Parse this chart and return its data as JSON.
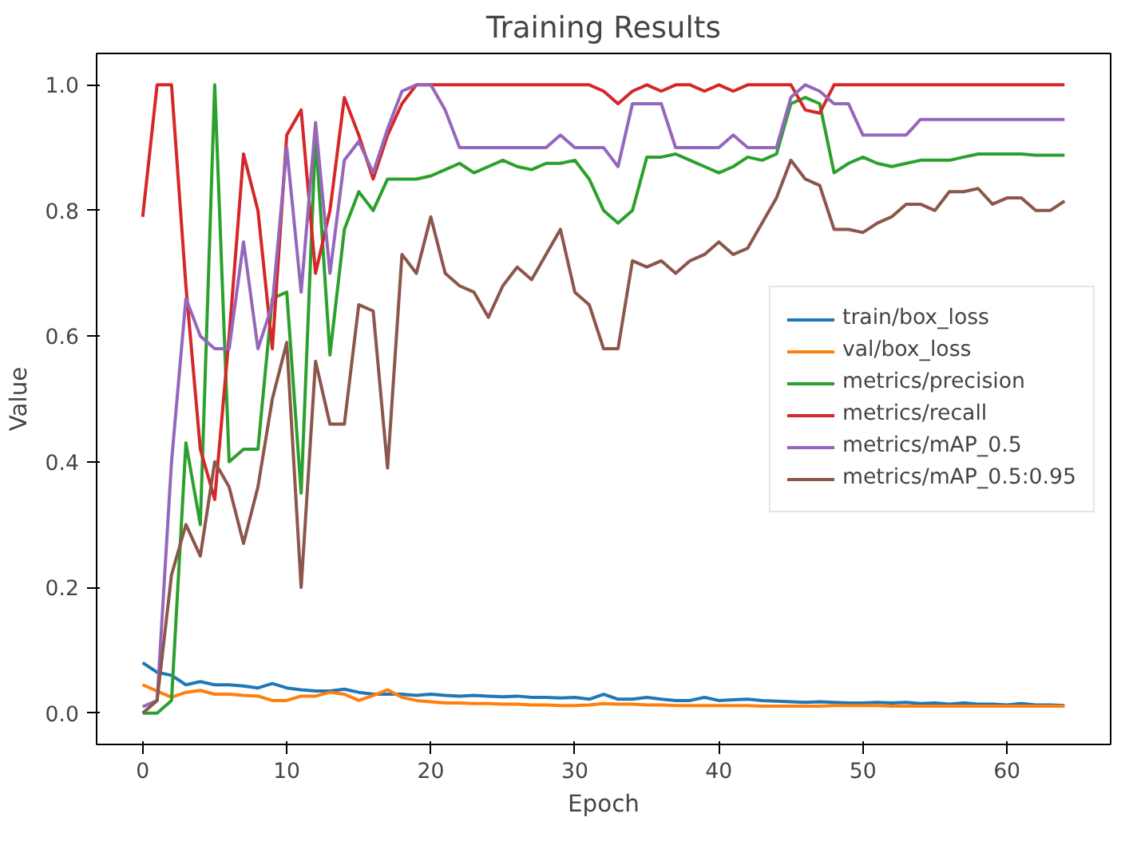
{
  "chart_data": {
    "type": "line",
    "title": "Training Results",
    "xlabel": "Epoch",
    "ylabel": "Value",
    "x": [
      0,
      1,
      2,
      3,
      4,
      5,
      6,
      7,
      8,
      9,
      10,
      11,
      12,
      13,
      14,
      15,
      16,
      17,
      18,
      19,
      20,
      21,
      22,
      23,
      24,
      25,
      26,
      27,
      28,
      29,
      30,
      31,
      32,
      33,
      34,
      35,
      36,
      37,
      38,
      39,
      40,
      41,
      42,
      43,
      44,
      45,
      46,
      47,
      48,
      49,
      50,
      51,
      52,
      53,
      54,
      55,
      56,
      57,
      58,
      59,
      60,
      61,
      62,
      63,
      64
    ],
    "xlim": [
      -3.2,
      67.2
    ],
    "ylim": [
      -0.05,
      1.05
    ],
    "xticks": [
      0,
      10,
      20,
      30,
      40,
      50,
      60
    ],
    "yticks": [
      {
        "value": 0,
        "label": "0.0"
      },
      {
        "value": 0.2,
        "label": "0.2"
      },
      {
        "value": 0.4,
        "label": "0.4"
      },
      {
        "value": 0.6,
        "label": "0.6"
      },
      {
        "value": 0.8,
        "label": "0.8"
      },
      {
        "value": 1,
        "label": "1.0"
      }
    ],
    "grid": false,
    "legend": "right",
    "line_style": "solid",
    "marker": "none",
    "series": [
      {
        "name": "train/box_loss",
        "color": "#1f77b4",
        "values": [
          0.08,
          0.065,
          0.06,
          0.045,
          0.05,
          0.045,
          0.045,
          0.043,
          0.04,
          0.047,
          0.04,
          0.037,
          0.035,
          0.035,
          0.038,
          0.033,
          0.03,
          0.03,
          0.03,
          0.028,
          0.03,
          0.028,
          0.027,
          0.028,
          0.027,
          0.026,
          0.027,
          0.025,
          0.025,
          0.024,
          0.025,
          0.022,
          0.03,
          0.022,
          0.022,
          0.025,
          0.022,
          0.02,
          0.02,
          0.025,
          0.02,
          0.021,
          0.022,
          0.02,
          0.019,
          0.018,
          0.017,
          0.018,
          0.017,
          0.016,
          0.016,
          0.017,
          0.016,
          0.017,
          0.015,
          0.016,
          0.014,
          0.016,
          0.014,
          0.014,
          0.013,
          0.015,
          0.013,
          0.013,
          0.012
        ]
      },
      {
        "name": "val/box_loss",
        "color": "#ff7f0e",
        "values": [
          0.045,
          0.035,
          0.025,
          0.033,
          0.036,
          0.03,
          0.03,
          0.028,
          0.027,
          0.02,
          0.02,
          0.027,
          0.027,
          0.033,
          0.03,
          0.02,
          0.028,
          0.037,
          0.025,
          0.02,
          0.018,
          0.016,
          0.016,
          0.015,
          0.015,
          0.014,
          0.014,
          0.013,
          0.013,
          0.012,
          0.012,
          0.013,
          0.015,
          0.014,
          0.014,
          0.013,
          0.013,
          0.012,
          0.012,
          0.012,
          0.012,
          0.012,
          0.012,
          0.011,
          0.011,
          0.011,
          0.011,
          0.011,
          0.012,
          0.012,
          0.012,
          0.012,
          0.011,
          0.011,
          0.011,
          0.011,
          0.011,
          0.011,
          0.011,
          0.011,
          0.011,
          0.011,
          0.011,
          0.011,
          0.011
        ]
      },
      {
        "name": "metrics/precision",
        "color": "#2ca02c",
        "values": [
          0.0,
          0.0,
          0.02,
          0.43,
          0.3,
          1.0,
          0.4,
          0.42,
          0.42,
          0.66,
          0.67,
          0.35,
          0.92,
          0.57,
          0.77,
          0.83,
          0.8,
          0.85,
          0.85,
          0.85,
          0.855,
          0.865,
          0.875,
          0.86,
          0.87,
          0.88,
          0.87,
          0.865,
          0.875,
          0.875,
          0.88,
          0.85,
          0.8,
          0.78,
          0.8,
          0.885,
          0.885,
          0.89,
          0.88,
          0.87,
          0.86,
          0.87,
          0.885,
          0.88,
          0.89,
          0.97,
          0.98,
          0.97,
          0.86,
          0.875,
          0.885,
          0.875,
          0.87,
          0.875,
          0.88,
          0.88,
          0.88,
          0.885,
          0.89,
          0.89,
          0.89,
          0.89,
          0.888,
          0.888,
          0.888
        ]
      },
      {
        "name": "metrics/recall",
        "color": "#d62728",
        "values": [
          0.79,
          1.0,
          1.0,
          0.68,
          0.42,
          0.34,
          0.6,
          0.89,
          0.8,
          0.58,
          0.92,
          0.96,
          0.7,
          0.8,
          0.98,
          0.92,
          0.85,
          0.92,
          0.97,
          1.0,
          1.0,
          1.0,
          1.0,
          1.0,
          1.0,
          1.0,
          1.0,
          1.0,
          1.0,
          1.0,
          1.0,
          1.0,
          0.99,
          0.97,
          0.99,
          1.0,
          0.99,
          1.0,
          1.0,
          0.99,
          1.0,
          0.99,
          1.0,
          1.0,
          1.0,
          1.0,
          0.96,
          0.955,
          1.0,
          1.0,
          1.0,
          1.0,
          1.0,
          1.0,
          1.0,
          1.0,
          1.0,
          1.0,
          1.0,
          1.0,
          1.0,
          1.0,
          1.0,
          1.0,
          1.0
        ]
      },
      {
        "name": "metrics/mAP_0.5",
        "color": "#9467bd",
        "values": [
          0.01,
          0.02,
          0.4,
          0.66,
          0.6,
          0.58,
          0.58,
          0.75,
          0.58,
          0.65,
          0.9,
          0.67,
          0.94,
          0.7,
          0.88,
          0.91,
          0.86,
          0.93,
          0.99,
          1.0,
          1.0,
          0.96,
          0.9,
          0.9,
          0.9,
          0.9,
          0.9,
          0.9,
          0.9,
          0.92,
          0.9,
          0.9,
          0.9,
          0.87,
          0.97,
          0.97,
          0.97,
          0.9,
          0.9,
          0.9,
          0.9,
          0.92,
          0.9,
          0.9,
          0.9,
          0.98,
          1.0,
          0.99,
          0.97,
          0.97,
          0.92,
          0.92,
          0.92,
          0.92,
          0.945,
          0.945,
          0.945,
          0.945,
          0.945,
          0.945,
          0.945,
          0.945,
          0.945,
          0.945,
          0.945
        ]
      },
      {
        "name": "metrics/mAP_0.5:0.95",
        "color": "#8c564b",
        "values": [
          0.0,
          0.02,
          0.22,
          0.3,
          0.25,
          0.4,
          0.36,
          0.27,
          0.36,
          0.5,
          0.59,
          0.2,
          0.56,
          0.46,
          0.46,
          0.65,
          0.64,
          0.39,
          0.73,
          0.7,
          0.79,
          0.7,
          0.68,
          0.67,
          0.63,
          0.68,
          0.71,
          0.69,
          0.73,
          0.77,
          0.67,
          0.65,
          0.58,
          0.58,
          0.72,
          0.71,
          0.72,
          0.7,
          0.72,
          0.73,
          0.75,
          0.73,
          0.74,
          0.78,
          0.82,
          0.88,
          0.85,
          0.84,
          0.77,
          0.77,
          0.765,
          0.78,
          0.79,
          0.81,
          0.81,
          0.8,
          0.83,
          0.83,
          0.835,
          0.81,
          0.82,
          0.82,
          0.8,
          0.8,
          0.815
        ]
      }
    ]
  }
}
